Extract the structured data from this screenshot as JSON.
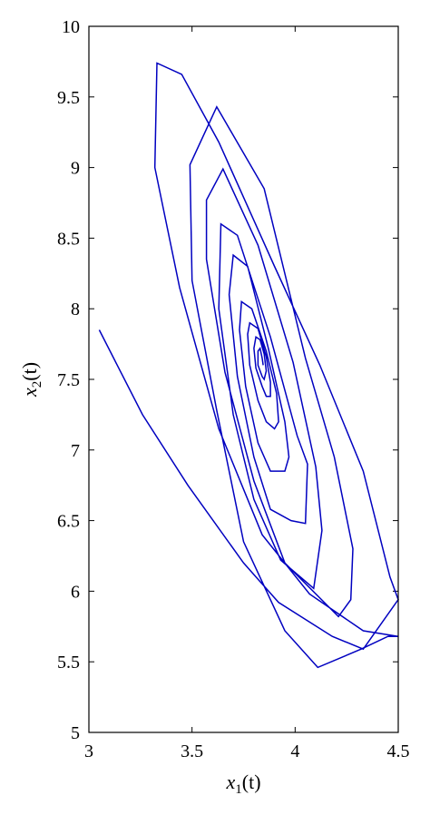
{
  "chart_data": {
    "type": "line",
    "title": "",
    "xlabel": {
      "var": "x",
      "sub": "1",
      "arg": "(t)"
    },
    "ylabel": {
      "var": "x",
      "sub": "2",
      "arg": "(t)"
    },
    "xlim": [
      3,
      4.5
    ],
    "ylim": [
      5,
      10
    ],
    "xticks": [
      "3",
      "3.5",
      "4",
      "4.5"
    ],
    "yticks": [
      "5",
      "5.5",
      "6",
      "6.5",
      "7",
      "7.5",
      "8",
      "8.5",
      "9",
      "9.5",
      "10"
    ],
    "grid": false,
    "line_color": "#0000c0",
    "series": [
      {
        "x": [
          3.05,
          3.26,
          3.48,
          3.75,
          3.92,
          4.18,
          4.33,
          4.5,
          4.46,
          4.33,
          4.12,
          3.9,
          3.63,
          3.45,
          3.33,
          3.32,
          3.44,
          3.63,
          3.84,
          4.07,
          4.33,
          4.5,
          4.45,
          4.32,
          4.11,
          3.95,
          3.75,
          3.62,
          3.5,
          3.49,
          3.62,
          3.85,
          4.05,
          4.19,
          4.28,
          4.27,
          4.21,
          3.95,
          3.8,
          3.66,
          3.57,
          3.57,
          3.65,
          3.82,
          3.99,
          4.1,
          4.13,
          4.09,
          3.93,
          3.8,
          3.7,
          3.63,
          3.64,
          3.72,
          3.88,
          4.01,
          4.06,
          4.05,
          3.98,
          3.88,
          3.8,
          3.72,
          3.68,
          3.7,
          3.77,
          3.87,
          3.95,
          3.97,
          3.95,
          3.88,
          3.82,
          3.76,
          3.73,
          3.74,
          3.79,
          3.86,
          3.91,
          3.92,
          3.9,
          3.86,
          3.82,
          3.78,
          3.77,
          3.78,
          3.82,
          3.86,
          3.88,
          3.88,
          3.86,
          3.84,
          3.81,
          3.8,
          3.81,
          3.83,
          3.85,
          3.86,
          3.85,
          3.84,
          3.82,
          3.82,
          3.83,
          3.84,
          3.845
        ],
        "y": [
          7.85,
          7.25,
          6.75,
          6.2,
          5.92,
          5.68,
          5.59,
          5.94,
          6.1,
          6.85,
          7.6,
          8.3,
          9.18,
          9.66,
          9.74,
          9.0,
          8.15,
          7.15,
          6.4,
          5.98,
          5.72,
          5.68,
          5.68,
          5.59,
          5.46,
          5.72,
          6.35,
          7.28,
          8.2,
          9.02,
          9.43,
          8.85,
          7.65,
          6.95,
          6.3,
          5.94,
          5.82,
          6.2,
          6.78,
          7.55,
          8.35,
          8.77,
          8.99,
          8.45,
          7.62,
          6.88,
          6.43,
          6.02,
          6.22,
          6.65,
          7.25,
          8.0,
          8.6,
          8.52,
          7.8,
          7.1,
          6.9,
          6.48,
          6.5,
          6.58,
          6.95,
          7.52,
          8.1,
          8.38,
          8.3,
          7.72,
          7.2,
          6.95,
          6.85,
          6.85,
          7.05,
          7.45,
          7.85,
          8.05,
          8.0,
          7.7,
          7.4,
          7.2,
          7.15,
          7.2,
          7.35,
          7.6,
          7.82,
          7.9,
          7.86,
          7.66,
          7.48,
          7.38,
          7.38,
          7.45,
          7.58,
          7.72,
          7.8,
          7.78,
          7.68,
          7.56,
          7.5,
          7.52,
          7.6,
          7.7,
          7.72,
          7.65,
          7.6
        ]
      }
    ]
  }
}
